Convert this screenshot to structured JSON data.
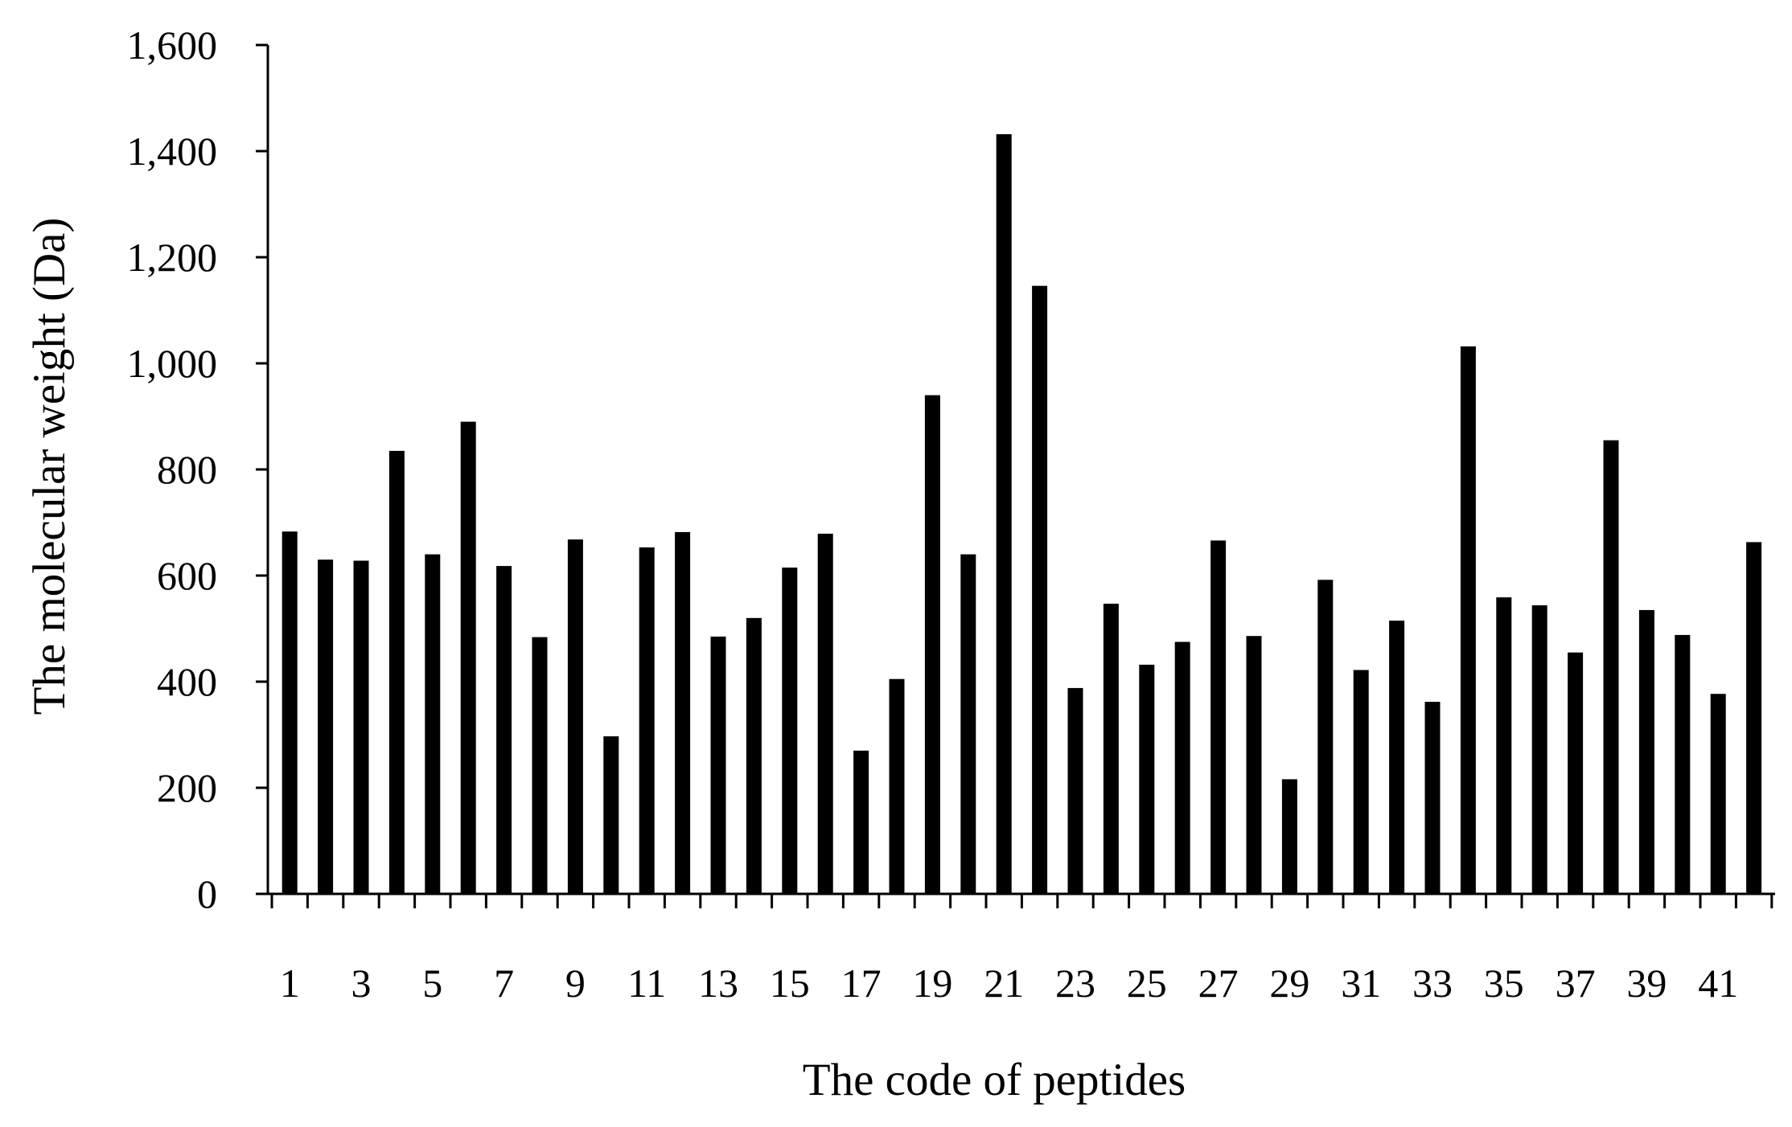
{
  "chart_data": {
    "type": "bar",
    "title": "",
    "xlabel": "The code of peptides",
    "ylabel": "The molecular weight (Da)",
    "ylim": [
      0,
      1600
    ],
    "yticks": [
      0,
      200,
      400,
      600,
      800,
      1000,
      1200,
      1400,
      1600
    ],
    "ytick_labels": [
      "0",
      "200",
      "400",
      "600",
      "800",
      "1,000",
      "1,200",
      "1,400",
      "1,600"
    ],
    "categories": [
      "1",
      "2",
      "3",
      "4",
      "5",
      "6",
      "7",
      "8",
      "9",
      "10",
      "11",
      "12",
      "13",
      "14",
      "15",
      "16",
      "17",
      "18",
      "19",
      "20",
      "21",
      "22",
      "23",
      "24",
      "25",
      "26",
      "27",
      "28",
      "29",
      "30",
      "31",
      "32",
      "33",
      "34",
      "35",
      "36",
      "37",
      "38",
      "39",
      "40",
      "41",
      "42"
    ],
    "xtick_labels_shown": [
      "1",
      "3",
      "5",
      "7",
      "9",
      "11",
      "13",
      "15",
      "17",
      "19",
      "21",
      "23",
      "25",
      "27",
      "29",
      "31",
      "33",
      "35",
      "37",
      "39",
      "41"
    ],
    "values": [
      683,
      630,
      628,
      835,
      640,
      890,
      618,
      484,
      668,
      297,
      653,
      682,
      485,
      520,
      615,
      679,
      270,
      405,
      940,
      640,
      1432,
      1146,
      388,
      547,
      432,
      475,
      666,
      486,
      216,
      592,
      422,
      515,
      362,
      1032,
      559,
      544,
      455,
      855,
      535,
      488,
      377,
      663
    ],
    "bar_color": "#000000",
    "grid": false,
    "legend": "none"
  }
}
